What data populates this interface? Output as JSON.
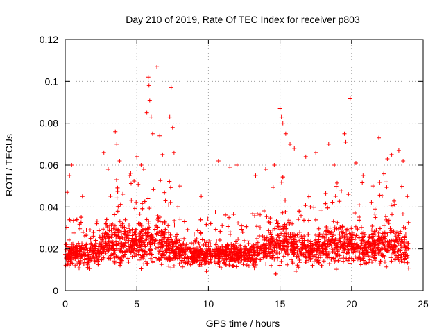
{
  "chart_data": {
    "type": "scatter",
    "title": "Day 210 of 2019, Rate Of TEC Index for receiver p803",
    "xlabel": "GPS time / hours",
    "ylabel": "ROTI / TECUs",
    "xlim": [
      0,
      25
    ],
    "ylim": [
      0,
      0.12
    ],
    "x_ticks": [
      "0",
      "5",
      "10",
      "15",
      "20",
      "25"
    ],
    "y_ticks": [
      "0",
      "0.02",
      "0.04",
      "0.06",
      "0.08",
      "0.1",
      "0.12"
    ],
    "x_tick_values": [
      0,
      5,
      10,
      15,
      20,
      25
    ],
    "y_tick_values": [
      0,
      0.02,
      0.04,
      0.06,
      0.08,
      0.1,
      0.12
    ],
    "grid": true,
    "marker": "+",
    "color": "#ff0000",
    "series": [
      {
        "name": "ROTI",
        "points_note": "dense band 0.008-0.04 across 0-24 h",
        "outliers": [
          [
            0.15,
            0.047
          ],
          [
            0.3,
            0.055
          ],
          [
            0.45,
            0.06
          ],
          [
            1.2,
            0.045
          ],
          [
            2.7,
            0.066
          ],
          [
            3.0,
            0.058
          ],
          [
            3.5,
            0.076
          ],
          [
            3.6,
            0.07
          ],
          [
            3.8,
            0.062
          ],
          [
            4.5,
            0.055
          ],
          [
            5.0,
            0.064
          ],
          [
            5.3,
            0.06
          ],
          [
            5.7,
            0.085
          ],
          [
            5.8,
            0.102
          ],
          [
            5.85,
            0.098
          ],
          [
            5.9,
            0.091
          ],
          [
            6.0,
            0.083
          ],
          [
            6.1,
            0.075
          ],
          [
            6.4,
            0.107
          ],
          [
            6.6,
            0.074
          ],
          [
            6.8,
            0.065
          ],
          [
            7.3,
            0.083
          ],
          [
            7.4,
            0.097
          ],
          [
            7.5,
            0.078
          ],
          [
            7.6,
            0.066
          ],
          [
            8.0,
            0.05
          ],
          [
            9.5,
            0.045
          ],
          [
            10.7,
            0.062
          ],
          [
            11.5,
            0.059
          ],
          [
            12.0,
            0.06
          ],
          [
            13.3,
            0.055
          ],
          [
            14.0,
            0.058
          ],
          [
            14.6,
            0.06
          ],
          [
            15.0,
            0.087
          ],
          [
            15.1,
            0.083
          ],
          [
            15.2,
            0.08
          ],
          [
            15.4,
            0.075
          ],
          [
            15.7,
            0.07
          ],
          [
            16.0,
            0.068
          ],
          [
            16.8,
            0.064
          ],
          [
            17.5,
            0.066
          ],
          [
            18.4,
            0.07
          ],
          [
            18.8,
            0.06
          ],
          [
            19.5,
            0.075
          ],
          [
            19.6,
            0.071
          ],
          [
            19.9,
            0.092
          ],
          [
            20.3,
            0.061
          ],
          [
            20.8,
            0.055
          ],
          [
            21.5,
            0.05
          ],
          [
            21.9,
            0.073
          ],
          [
            22.5,
            0.063
          ],
          [
            22.8,
            0.065
          ],
          [
            23.3,
            0.067
          ],
          [
            23.6,
            0.062
          ],
          [
            23.9,
            0.045
          ]
        ]
      }
    ]
  }
}
